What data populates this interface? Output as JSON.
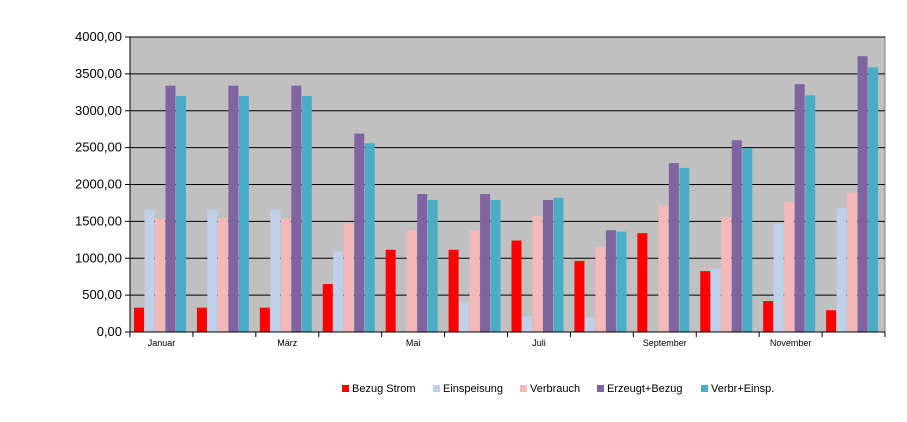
{
  "chart_data": {
    "type": "bar",
    "title": "",
    "xlabel": "",
    "ylabel": "",
    "ylim": [
      0,
      4000
    ],
    "y_ticks": [
      "0,00",
      "500,00",
      "1000,00",
      "1500,00",
      "2000,00",
      "2500,00",
      "3000,00",
      "3500,00",
      "4000,00"
    ],
    "grid": true,
    "legend_position": "bottom",
    "plot_background": "#c0c0c0",
    "categories": [
      "Januar",
      "",
      "März",
      "",
      "Mai",
      "",
      "Juli",
      "",
      "September",
      "",
      "November",
      ""
    ],
    "series": [
      {
        "name": "Bezug Strom",
        "color": "#ff0000",
        "values": [
          330,
          330,
          330,
          650,
          1115,
          1115,
          1240,
          965,
          1340,
          825,
          420,
          295
        ]
      },
      {
        "name": "Einspeisung",
        "color": "#c0d0e8",
        "values": [
          1660,
          1660,
          1660,
          1090,
          0,
          410,
          210,
          195,
          0,
          860,
          1470,
          1680
        ]
      },
      {
        "name": "Verbrauch",
        "color": "#f4b8b8",
        "values": [
          1540,
          1540,
          1540,
          1470,
          1380,
          1380,
          1570,
          1155,
          1720,
          1560,
          1760,
          1890
        ]
      },
      {
        "name": "Erzeugt+Bezug",
        "color": "#8064a2",
        "values": [
          3340,
          3340,
          3340,
          2690,
          1870,
          1870,
          1790,
          1380,
          2290,
          2600,
          3360,
          3740
        ]
      },
      {
        "name": "Verbr+Einsp.",
        "color": "#4bacc6",
        "values": [
          3200,
          3200,
          3200,
          2560,
          1790,
          1790,
          1820,
          1360,
          2225,
          2495,
          3210,
          3590
        ]
      }
    ]
  }
}
